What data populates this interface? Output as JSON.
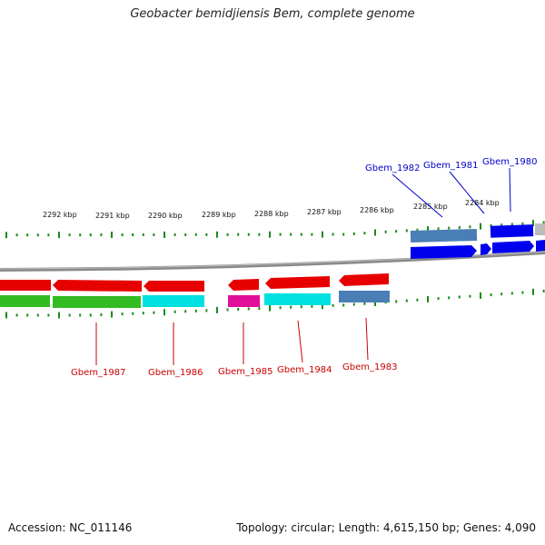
{
  "title": "Geobacter bemidjiensis Bem, complete genome",
  "accession": "Accession: NC_011146",
  "summary": "Topology: circular; Length: 4,615,150 bp; Genes: 4,090",
  "colors": {
    "backbone": "#888888",
    "tick": "#1a8a1a",
    "label_red": "#cc0000",
    "label_blue": "#0000cc"
  },
  "ticks": [
    {
      "label": "2292 kbp"
    },
    {
      "label": "2291 kbp"
    },
    {
      "label": "2290 kbp"
    },
    {
      "label": "2289 kbp"
    },
    {
      "label": "2288 kbp"
    },
    {
      "label": "2287 kbp"
    },
    {
      "label": "2286 kbp"
    },
    {
      "label": "2285 kbp"
    },
    {
      "label": "2284 kbp"
    }
  ],
  "gene_labels": [
    {
      "name": "Gbem_1987",
      "color": "#cc0000"
    },
    {
      "name": "Gbem_1986",
      "color": "#cc0000"
    },
    {
      "name": "Gbem_1985",
      "color": "#cc0000"
    },
    {
      "name": "Gbem_1984",
      "color": "#cc0000"
    },
    {
      "name": "Gbem_1983",
      "color": "#cc0000"
    },
    {
      "name": "Gbem_1982",
      "color": "#0000cc"
    },
    {
      "name": "Gbem_1981",
      "color": "#0000cc"
    },
    {
      "name": "Gbem_1980",
      "color": "#0000cc"
    }
  ]
}
